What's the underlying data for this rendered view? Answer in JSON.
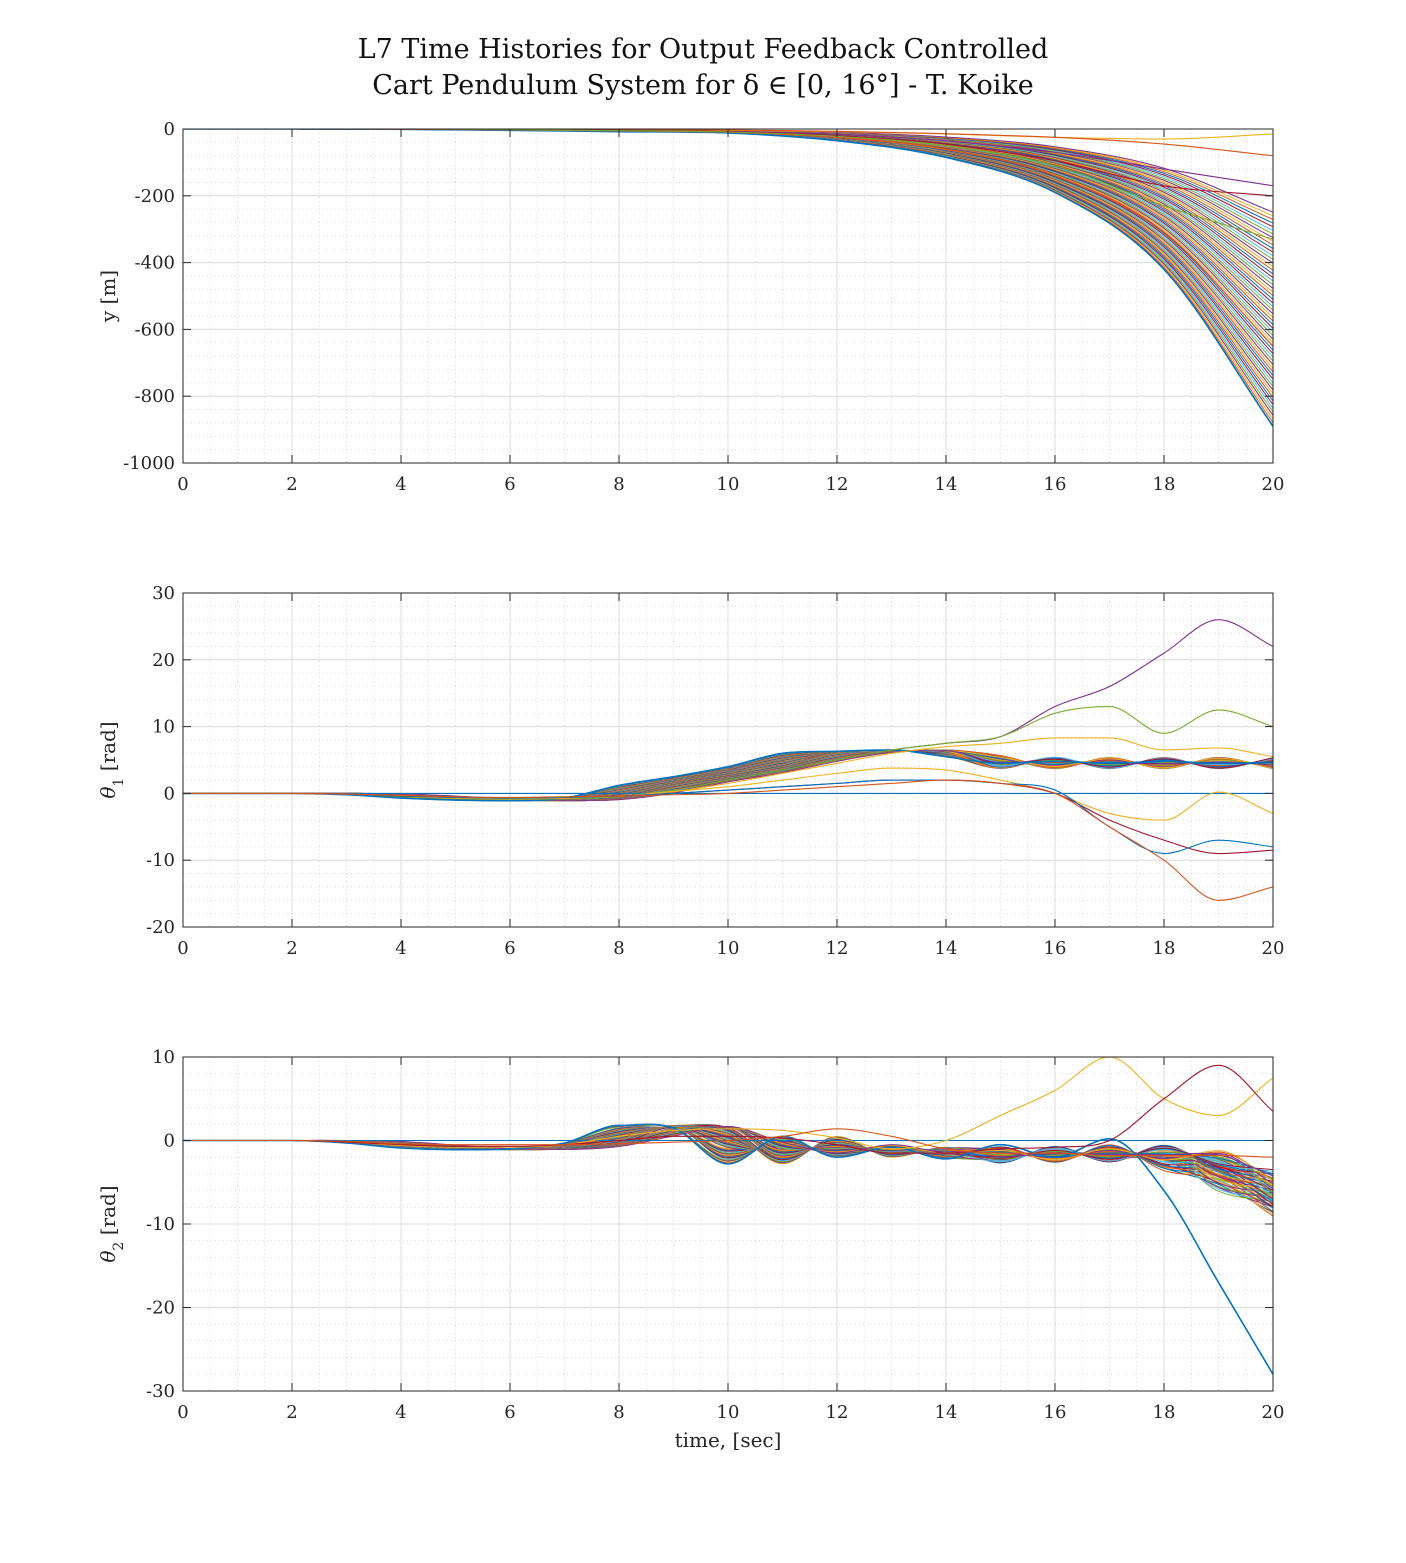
{
  "title": {
    "line1": "L7 Time Histories for Output Feedback Controlled",
    "line2": "Cart Pendulum System for δ ∈ [0, 16°] - T. Koike"
  },
  "colors": {
    "axes": "#262626",
    "grid_major": "#dcdcdc",
    "grid_minor": "#cfcfcf",
    "series_cycle": [
      "#0072BD",
      "#D95319",
      "#EDB120",
      "#7E2F8E",
      "#77AC30",
      "#4DBEEE",
      "#A2142F"
    ]
  },
  "chart_data": [
    {
      "type": "line",
      "id": "y",
      "ylabel": "y [m]",
      "xlabel": "",
      "xlim": [
        0,
        20
      ],
      "ylim": [
        -1000,
        0
      ],
      "xticks": [
        0,
        2,
        4,
        6,
        8,
        10,
        12,
        14,
        16,
        18,
        20
      ],
      "yticks": [
        0,
        -200,
        -400,
        -600,
        -800,
        -1000
      ],
      "ytick_labels": [
        "0",
        "-200",
        "-400",
        "-600",
        "-800",
        "-1000"
      ],
      "grid": "major+minor",
      "legend": "none",
      "bundle": {
        "count": 60,
        "note": "family of responses, one per δ"
      },
      "x": [
        0,
        2,
        4,
        6,
        8,
        10,
        12,
        14,
        16,
        18,
        20
      ],
      "series": [
        {
          "color": "#0072BD",
          "values": [
            0,
            0,
            -1,
            -4,
            -8,
            -12,
            -35,
            -85,
            -190,
            -420,
            -890
          ]
        },
        {
          "color": "#D95319",
          "values": [
            0,
            0,
            -1,
            -3,
            -6,
            -10,
            -25,
            -60,
            -140,
            -310,
            -650
          ]
        },
        {
          "color": "#7E2F8E",
          "values": [
            0,
            0,
            0,
            -2,
            -4,
            -7,
            -16,
            -35,
            -70,
            -120,
            -170
          ]
        },
        {
          "color": "#EDB120",
          "values": [
            0,
            0,
            0,
            -1,
            -2,
            -4,
            -8,
            -15,
            -25,
            -30,
            -15
          ]
        },
        {
          "color": "#D95319",
          "values": [
            0,
            0,
            0,
            -1,
            -2,
            -3,
            -7,
            -14,
            -25,
            -45,
            -80
          ]
        },
        {
          "color": "#A2142F",
          "values": [
            0,
            0,
            0,
            -2,
            -4,
            -8,
            -20,
            -45,
            -95,
            -170,
            -200
          ]
        },
        {
          "color": "#77AC30",
          "values": [
            0,
            0,
            0,
            -2,
            -5,
            -9,
            -22,
            -50,
            -110,
            -230,
            -330
          ]
        }
      ]
    },
    {
      "type": "line",
      "id": "theta1",
      "ylabel": "θ1 [rad]",
      "xlabel": "",
      "xlim": [
        0,
        20
      ],
      "ylim": [
        -20,
        30
      ],
      "xticks": [
        0,
        2,
        4,
        6,
        8,
        10,
        12,
        14,
        16,
        18,
        20
      ],
      "yticks": [
        -20,
        -10,
        0,
        10,
        20,
        30
      ],
      "ytick_labels": [
        "-20",
        "-10",
        "0",
        "10",
        "20",
        "30"
      ],
      "grid": "major+minor",
      "legend": "none",
      "bundle": {
        "count": 60,
        "settles_to": 4.5,
        "note": "family of responses, one per δ"
      },
      "x": [
        0,
        2,
        3,
        4,
        5,
        6,
        7,
        8,
        9,
        10,
        11,
        12,
        13,
        14,
        15,
        16,
        17,
        18,
        19,
        20
      ],
      "series": [
        {
          "color": "#0072BD",
          "values": [
            0,
            0,
            -0.2,
            -0.7,
            -1.0,
            -1.1,
            -0.7,
            1.2,
            2.5,
            4.0,
            6.0,
            6.3,
            6.5,
            5.5,
            4.5,
            4.8,
            4.5,
            4.8,
            4.5,
            4.6
          ]
        },
        {
          "color": "#0072BD",
          "values": [
            0,
            0,
            0,
            0,
            0,
            0,
            0,
            0,
            0,
            0,
            0,
            0,
            0,
            0,
            0,
            0,
            0,
            0,
            0,
            0
          ]
        },
        {
          "color": "#7E2F8E",
          "values": [
            0,
            0,
            -0.1,
            -0.5,
            -0.8,
            -0.9,
            -0.8,
            -0.5,
            0.5,
            2,
            3.5,
            5,
            6.5,
            7.5,
            8.5,
            13,
            16,
            21,
            26,
            22
          ]
        },
        {
          "color": "#77AC30",
          "values": [
            0,
            0,
            -0.1,
            -0.5,
            -0.8,
            -0.9,
            -0.8,
            -0.5,
            0.5,
            2,
            3.5,
            5,
            6.5,
            7.5,
            8.5,
            12,
            13,
            9,
            12.5,
            10
          ]
        },
        {
          "color": "#EDB120",
          "values": [
            0,
            0,
            -0.1,
            -0.4,
            -0.7,
            -0.8,
            -0.7,
            -0.4,
            0.3,
            1.5,
            3,
            4.5,
            6,
            7,
            7.5,
            8.3,
            8.3,
            6.5,
            6.8,
            5.5
          ]
        },
        {
          "color": "#EDB120",
          "values": [
            0,
            0,
            -0.1,
            -0.4,
            -0.7,
            -0.8,
            -0.7,
            -0.4,
            0.3,
            1,
            2,
            3,
            3.8,
            3.5,
            2,
            0,
            -3,
            -4,
            0.2,
            -3
          ]
        },
        {
          "color": "#A2142F",
          "values": [
            0,
            0,
            -0.1,
            -0.4,
            -0.6,
            -0.7,
            -0.6,
            -0.4,
            0,
            0.5,
            1,
            1.5,
            2,
            2,
            1.5,
            0,
            -4,
            -7,
            -9,
            -8.5
          ]
        },
        {
          "color": "#0072BD",
          "values": [
            0,
            0,
            -0.1,
            -0.4,
            -0.6,
            -0.7,
            -0.6,
            -0.4,
            0,
            0.5,
            1,
            1.5,
            2,
            2,
            1.5,
            0.5,
            -5,
            -9,
            -7,
            -8
          ]
        },
        {
          "color": "#D95319",
          "values": [
            0,
            0,
            -0.1,
            -0.3,
            -0.5,
            -0.6,
            -0.5,
            -0.4,
            -0.2,
            0,
            0.5,
            1,
            1.5,
            2,
            1.5,
            0,
            -5,
            -10,
            -16,
            -14
          ]
        }
      ]
    },
    {
      "type": "line",
      "id": "theta2",
      "ylabel": "θ2 [rad]",
      "xlabel": "time, [sec]",
      "xlim": [
        0,
        20
      ],
      "ylim": [
        -30,
        10
      ],
      "xticks": [
        0,
        2,
        4,
        6,
        8,
        10,
        12,
        14,
        16,
        18,
        20
      ],
      "yticks": [
        -30,
        -20,
        -10,
        0,
        10
      ],
      "ytick_labels": [
        "-30",
        "-20",
        "-10",
        "0",
        "10"
      ],
      "grid": "major+minor",
      "legend": "none",
      "bundle": {
        "count": 60,
        "settles_to": -1.8,
        "note": "family of responses, one per δ"
      },
      "x": [
        0,
        2,
        3,
        4,
        5,
        6,
        7,
        8,
        9,
        10,
        11,
        12,
        13,
        14,
        15,
        16,
        17,
        18,
        19,
        20
      ],
      "series": [
        {
          "color": "#0072BD",
          "values": [
            0,
            0,
            -0.3,
            -0.9,
            -1.1,
            -1.0,
            -0.3,
            1.8,
            1.5,
            -2.8,
            0.5,
            -2.0,
            -0.8,
            -2.2,
            -0.5,
            -2.0,
            0.2,
            -6,
            -17,
            -28
          ]
        },
        {
          "color": "#0072BD",
          "values": [
            0,
            0,
            0,
            0,
            0,
            0,
            0,
            0,
            0,
            0,
            0,
            0,
            0,
            0,
            0,
            0,
            0,
            0,
            0,
            0
          ]
        },
        {
          "color": "#EDB120",
          "values": [
            0,
            0,
            -0.2,
            -0.6,
            -0.8,
            -0.8,
            -0.5,
            0.5,
            1.2,
            1.4,
            1.2,
            0.3,
            -1,
            0,
            3,
            6,
            10,
            5,
            3,
            7.5
          ]
        },
        {
          "color": "#A2142F",
          "values": [
            0,
            0,
            -0.2,
            -0.5,
            -0.7,
            -0.7,
            -0.5,
            0,
            0.5,
            0.5,
            0.3,
            -0.5,
            -1.5,
            -1.5,
            -1,
            -0.8,
            0,
            5,
            9,
            3.5
          ]
        },
        {
          "color": "#D95319",
          "values": [
            0,
            0,
            -0.1,
            -0.4,
            -0.5,
            -0.5,
            -0.5,
            -0.4,
            -0.2,
            0,
            0.5,
            1.4,
            0.5,
            -1,
            -1.5,
            -1.5,
            -1.8,
            -1.8,
            -1.8,
            -2
          ]
        }
      ]
    }
  ]
}
